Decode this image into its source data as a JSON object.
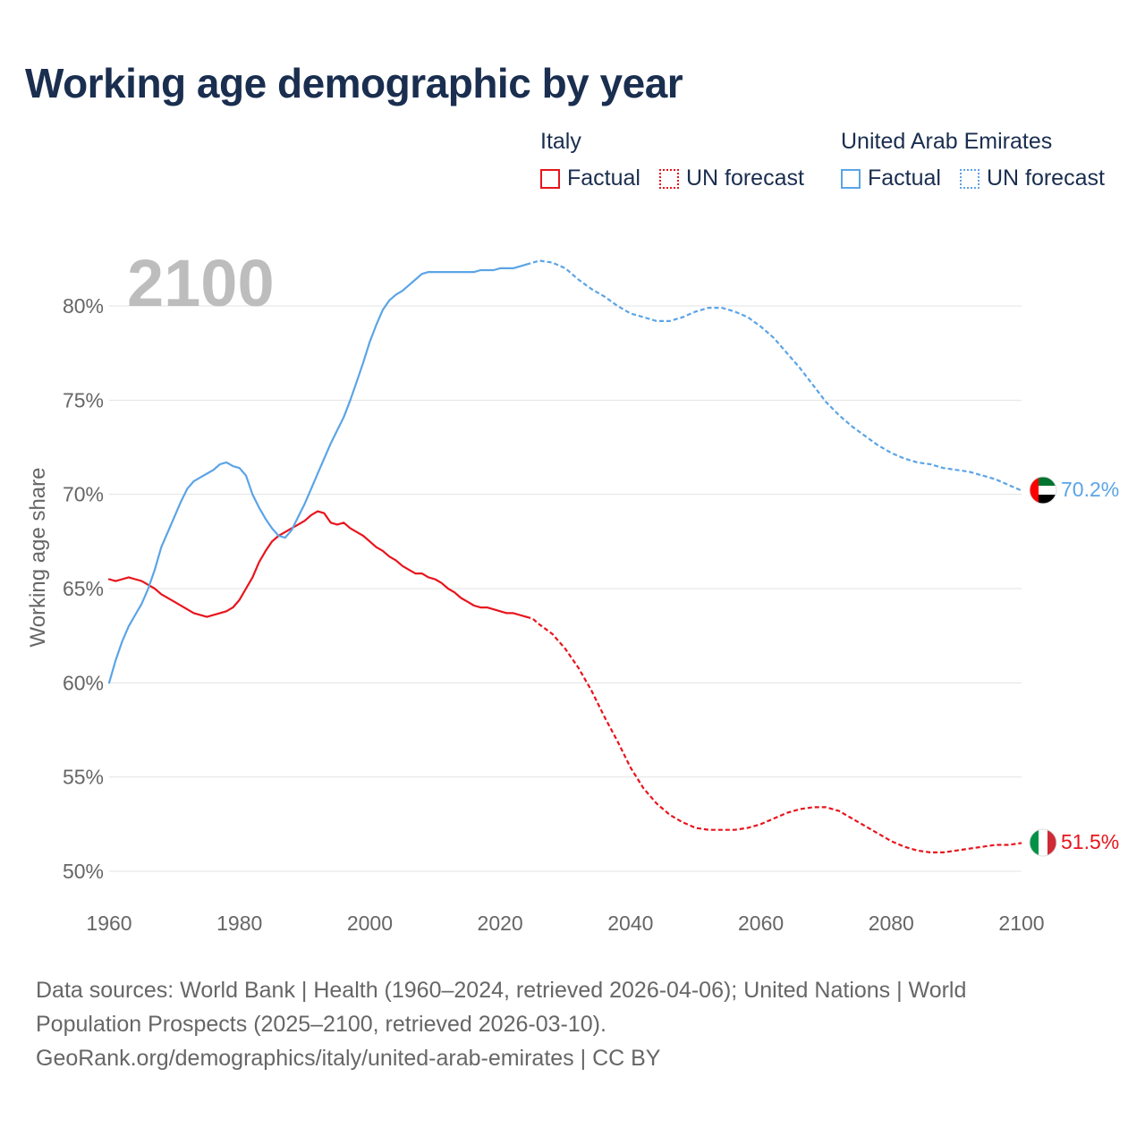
{
  "title": "Working age demographic by year",
  "legend": {
    "groups": [
      {
        "name": "Italy",
        "factual_label": "Factual",
        "forecast_label": "UN forecast",
        "color": "#e8141c"
      },
      {
        "name": "United Arab Emirates",
        "factual_label": "Factual",
        "forecast_label": "UN forecast",
        "color": "#5ba4e6"
      }
    ]
  },
  "year_label": "2100",
  "sources": {
    "line1": "Data sources: World Bank | Health (1960–2024, retrieved 2026-04-06); United Nations | World",
    "line2": "Population Prospects (2025–2100, retrieved 2026-03-10).",
    "line3": "GeoRank.org/demographics/italy/united-arab-emirates | CC BY"
  },
  "chart_data": {
    "type": "line",
    "title": "Working age demographic by year",
    "xlabel": "",
    "ylabel": "Working age share",
    "xlim": [
      1960,
      2100
    ],
    "ylim": [
      49,
      83
    ],
    "xticks": [
      1960,
      1980,
      2000,
      2020,
      2040,
      2060,
      2080,
      2100
    ],
    "xtick_labels": [
      "1960",
      "1980",
      "2000",
      "2020",
      "2040",
      "2060",
      "2080",
      "2100"
    ],
    "yticks": [
      50,
      55,
      60,
      65,
      70,
      75,
      80
    ],
    "ytick_labels": [
      "50%",
      "55%",
      "60%",
      "65%",
      "70%",
      "75%",
      "80%"
    ],
    "grid": true,
    "legend_position": "top-right",
    "factual_end_year": 2024,
    "series": [
      {
        "name": "Italy",
        "color": "#e8141c",
        "end_label": "51.5%",
        "end_icon": "italy-flag-icon",
        "points": [
          [
            1960,
            65.5
          ],
          [
            1961,
            65.4
          ],
          [
            1962,
            65.5
          ],
          [
            1963,
            65.6
          ],
          [
            1964,
            65.5
          ],
          [
            1965,
            65.4
          ],
          [
            1966,
            65.2
          ],
          [
            1967,
            65.0
          ],
          [
            1968,
            64.7
          ],
          [
            1970,
            64.3
          ],
          [
            1972,
            63.9
          ],
          [
            1973,
            63.7
          ],
          [
            1975,
            63.5
          ],
          [
            1977,
            63.7
          ],
          [
            1978,
            63.8
          ],
          [
            1979,
            64.0
          ],
          [
            1980,
            64.4
          ],
          [
            1981,
            65.0
          ],
          [
            1982,
            65.6
          ],
          [
            1983,
            66.4
          ],
          [
            1984,
            67.0
          ],
          [
            1985,
            67.5
          ],
          [
            1986,
            67.8
          ],
          [
            1987,
            68.0
          ],
          [
            1988,
            68.2
          ],
          [
            1989,
            68.4
          ],
          [
            1990,
            68.6
          ],
          [
            1991,
            68.9
          ],
          [
            1992,
            69.1
          ],
          [
            1993,
            69.0
          ],
          [
            1994,
            68.5
          ],
          [
            1995,
            68.4
          ],
          [
            1996,
            68.5
          ],
          [
            1997,
            68.2
          ],
          [
            1998,
            68.0
          ],
          [
            1999,
            67.8
          ],
          [
            2000,
            67.5
          ],
          [
            2001,
            67.2
          ],
          [
            2002,
            67.0
          ],
          [
            2003,
            66.7
          ],
          [
            2004,
            66.5
          ],
          [
            2005,
            66.2
          ],
          [
            2006,
            66.0
          ],
          [
            2007,
            65.8
          ],
          [
            2008,
            65.8
          ],
          [
            2009,
            65.6
          ],
          [
            2010,
            65.5
          ],
          [
            2011,
            65.3
          ],
          [
            2012,
            65.0
          ],
          [
            2013,
            64.8
          ],
          [
            2014,
            64.5
          ],
          [
            2015,
            64.3
          ],
          [
            2016,
            64.1
          ],
          [
            2017,
            64.0
          ],
          [
            2018,
            64.0
          ],
          [
            2019,
            63.9
          ],
          [
            2020,
            63.8
          ],
          [
            2021,
            63.7
          ],
          [
            2022,
            63.7
          ],
          [
            2023,
            63.6
          ],
          [
            2024,
            63.5
          ],
          [
            2025,
            63.4
          ],
          [
            2026,
            63.1
          ],
          [
            2028,
            62.6
          ],
          [
            2030,
            61.8
          ],
          [
            2032,
            60.8
          ],
          [
            2034,
            59.6
          ],
          [
            2036,
            58.2
          ],
          [
            2038,
            56.9
          ],
          [
            2040,
            55.5
          ],
          [
            2042,
            54.4
          ],
          [
            2044,
            53.6
          ],
          [
            2046,
            53.0
          ],
          [
            2048,
            52.6
          ],
          [
            2050,
            52.3
          ],
          [
            2052,
            52.2
          ],
          [
            2054,
            52.2
          ],
          [
            2056,
            52.2
          ],
          [
            2058,
            52.3
          ],
          [
            2060,
            52.5
          ],
          [
            2062,
            52.8
          ],
          [
            2064,
            53.1
          ],
          [
            2066,
            53.3
          ],
          [
            2068,
            53.4
          ],
          [
            2070,
            53.4
          ],
          [
            2072,
            53.2
          ],
          [
            2074,
            52.8
          ],
          [
            2076,
            52.4
          ],
          [
            2078,
            52.0
          ],
          [
            2080,
            51.6
          ],
          [
            2082,
            51.3
          ],
          [
            2084,
            51.1
          ],
          [
            2086,
            51.0
          ],
          [
            2088,
            51.0
          ],
          [
            2090,
            51.1
          ],
          [
            2092,
            51.2
          ],
          [
            2094,
            51.3
          ],
          [
            2096,
            51.4
          ],
          [
            2098,
            51.4
          ],
          [
            2100,
            51.5
          ]
        ]
      },
      {
        "name": "United Arab Emirates",
        "color": "#5ba4e6",
        "end_label": "70.2%",
        "end_icon": "uae-flag-icon",
        "points": [
          [
            1960,
            60.0
          ],
          [
            1961,
            61.2
          ],
          [
            1962,
            62.2
          ],
          [
            1963,
            63.0
          ],
          [
            1964,
            63.6
          ],
          [
            1965,
            64.2
          ],
          [
            1966,
            65.0
          ],
          [
            1967,
            66.0
          ],
          [
            1968,
            67.2
          ],
          [
            1969,
            68.0
          ],
          [
            1970,
            68.8
          ],
          [
            1971,
            69.6
          ],
          [
            1972,
            70.3
          ],
          [
            1973,
            70.7
          ],
          [
            1974,
            70.9
          ],
          [
            1975,
            71.1
          ],
          [
            1976,
            71.3
          ],
          [
            1977,
            71.6
          ],
          [
            1978,
            71.7
          ],
          [
            1979,
            71.5
          ],
          [
            1980,
            71.4
          ],
          [
            1981,
            71.0
          ],
          [
            1982,
            70.0
          ],
          [
            1983,
            69.3
          ],
          [
            1984,
            68.7
          ],
          [
            1985,
            68.2
          ],
          [
            1986,
            67.8
          ],
          [
            1987,
            67.7
          ],
          [
            1988,
            68.1
          ],
          [
            1989,
            68.8
          ],
          [
            1990,
            69.5
          ],
          [
            1991,
            70.3
          ],
          [
            1992,
            71.1
          ],
          [
            1993,
            71.9
          ],
          [
            1994,
            72.7
          ],
          [
            1995,
            73.4
          ],
          [
            1996,
            74.1
          ],
          [
            1997,
            75.0
          ],
          [
            1998,
            76.0
          ],
          [
            1999,
            77.0
          ],
          [
            2000,
            78.1
          ],
          [
            2001,
            79.0
          ],
          [
            2002,
            79.8
          ],
          [
            2003,
            80.3
          ],
          [
            2004,
            80.6
          ],
          [
            2005,
            80.8
          ],
          [
            2006,
            81.1
          ],
          [
            2007,
            81.4
          ],
          [
            2008,
            81.7
          ],
          [
            2009,
            81.8
          ],
          [
            2010,
            81.8
          ],
          [
            2012,
            81.8
          ],
          [
            2014,
            81.8
          ],
          [
            2016,
            81.8
          ],
          [
            2017,
            81.9
          ],
          [
            2019,
            81.9
          ],
          [
            2020,
            82.0
          ],
          [
            2022,
            82.0
          ],
          [
            2024,
            82.2
          ],
          [
            2026,
            82.4
          ],
          [
            2028,
            82.3
          ],
          [
            2030,
            82.0
          ],
          [
            2032,
            81.4
          ],
          [
            2034,
            80.9
          ],
          [
            2036,
            80.5
          ],
          [
            2038,
            80.0
          ],
          [
            2040,
            79.6
          ],
          [
            2042,
            79.4
          ],
          [
            2044,
            79.2
          ],
          [
            2046,
            79.2
          ],
          [
            2048,
            79.4
          ],
          [
            2050,
            79.7
          ],
          [
            2052,
            79.9
          ],
          [
            2054,
            79.9
          ],
          [
            2056,
            79.7
          ],
          [
            2058,
            79.4
          ],
          [
            2060,
            78.9
          ],
          [
            2062,
            78.3
          ],
          [
            2064,
            77.5
          ],
          [
            2066,
            76.7
          ],
          [
            2068,
            75.8
          ],
          [
            2070,
            74.9
          ],
          [
            2072,
            74.2
          ],
          [
            2074,
            73.6
          ],
          [
            2076,
            73.1
          ],
          [
            2078,
            72.6
          ],
          [
            2080,
            72.2
          ],
          [
            2082,
            71.9
          ],
          [
            2084,
            71.7
          ],
          [
            2086,
            71.6
          ],
          [
            2088,
            71.4
          ],
          [
            2090,
            71.3
          ],
          [
            2092,
            71.2
          ],
          [
            2094,
            71.0
          ],
          [
            2096,
            70.8
          ],
          [
            2098,
            70.5
          ],
          [
            2100,
            70.2
          ]
        ]
      }
    ]
  }
}
